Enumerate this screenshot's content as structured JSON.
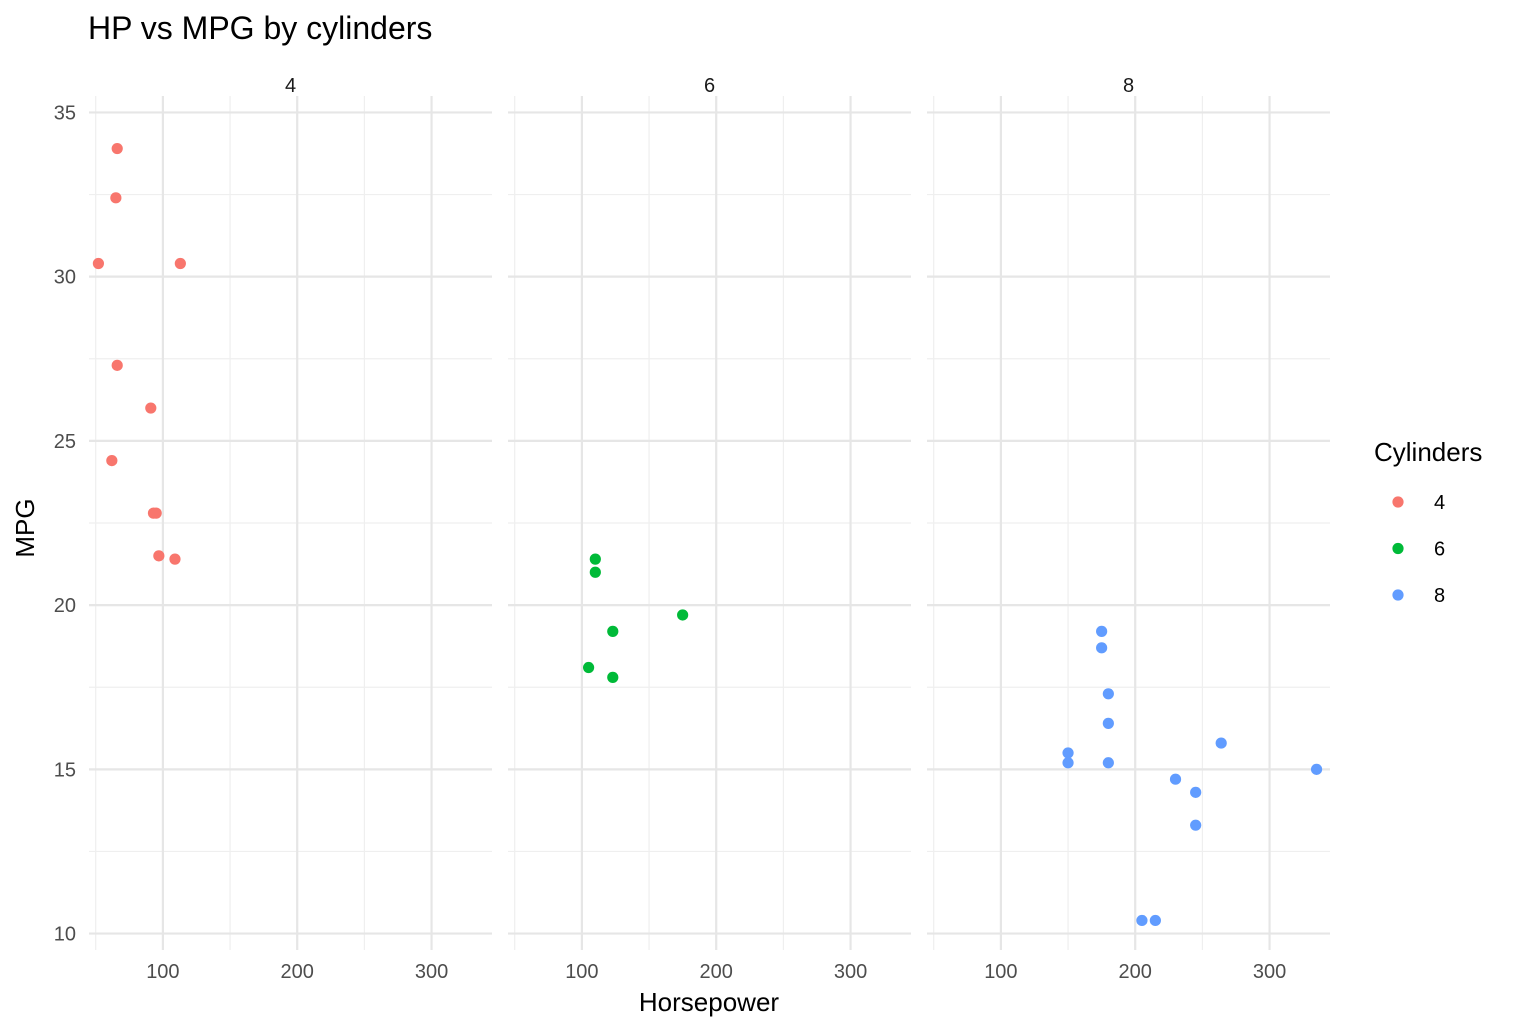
{
  "chart_data": {
    "type": "scatter",
    "title": "HP vs MPG by cylinders",
    "xlabel": "Horsepower",
    "ylabel": "MPG",
    "xlim": [
      45,
      345
    ],
    "ylim": [
      9.5,
      35.5
    ],
    "x_ticks": [
      100,
      200,
      300
    ],
    "y_ticks": [
      10,
      15,
      20,
      25,
      30,
      35
    ],
    "grid": true,
    "legend": {
      "title": "Cylinders",
      "position": "right"
    },
    "facets": [
      {
        "label": "4",
        "color": "#F8766D",
        "points": [
          {
            "x": 66,
            "y": 33.9
          },
          {
            "x": 65,
            "y": 32.4
          },
          {
            "x": 52,
            "y": 30.4
          },
          {
            "x": 113,
            "y": 30.4
          },
          {
            "x": 66,
            "y": 27.3
          },
          {
            "x": 91,
            "y": 26.0
          },
          {
            "x": 62,
            "y": 24.4
          },
          {
            "x": 93,
            "y": 22.8
          },
          {
            "x": 95,
            "y": 22.8
          },
          {
            "x": 97,
            "y": 21.5
          },
          {
            "x": 109,
            "y": 21.4
          }
        ]
      },
      {
        "label": "6",
        "color": "#00BA38",
        "points": [
          {
            "x": 110,
            "y": 21.4
          },
          {
            "x": 110,
            "y": 21.0
          },
          {
            "x": 175,
            "y": 19.7
          },
          {
            "x": 123,
            "y": 19.2
          },
          {
            "x": 105,
            "y": 18.1
          },
          {
            "x": 123,
            "y": 17.8
          }
        ]
      },
      {
        "label": "8",
        "color": "#619CFF",
        "points": [
          {
            "x": 175,
            "y": 19.2
          },
          {
            "x": 175,
            "y": 18.7
          },
          {
            "x": 180,
            "y": 17.3
          },
          {
            "x": 180,
            "y": 16.4
          },
          {
            "x": 264,
            "y": 15.8
          },
          {
            "x": 150,
            "y": 15.5
          },
          {
            "x": 150,
            "y": 15.2
          },
          {
            "x": 180,
            "y": 15.2
          },
          {
            "x": 335,
            "y": 15.0
          },
          {
            "x": 230,
            "y": 14.7
          },
          {
            "x": 245,
            "y": 14.3
          },
          {
            "x": 245,
            "y": 13.3
          },
          {
            "x": 205,
            "y": 10.4
          },
          {
            "x": 215,
            "y": 10.4
          }
        ]
      }
    ]
  }
}
